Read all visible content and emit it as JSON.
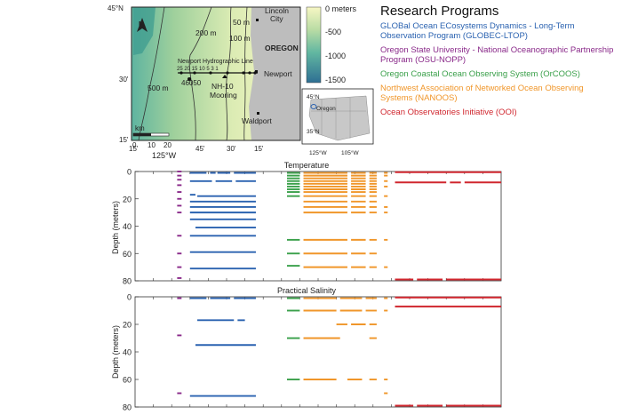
{
  "legend": {
    "title": "Research Programs",
    "programs": [
      {
        "name": "GLOBal Ocean ECosystems Dynamics - Long-Term Observation Program (GLOBEC-LTOP)",
        "color": "#2a62b0"
      },
      {
        "name": "Oregon State University - National Oceanographic Partnership Program (OSU-NOPP)",
        "color": "#8a2a8a"
      },
      {
        "name": "Oregon Coastal Ocean Observing System (OrCOOS)",
        "color": "#3aa04a"
      },
      {
        "name": "Northwest Association of Networked Ocean Observing Systems (NANOOS)",
        "color": "#f0962a"
      },
      {
        "name": "Ocean Observatories Initiative (OOI)",
        "color": "#d0262e"
      }
    ]
  },
  "map": {
    "lat_top": "45°N",
    "lat_mid": "30'",
    "lat_bottom": "15'",
    "lat_left_45": "45",
    "lon_main": "125°W",
    "lon_15a": "15'",
    "lon_45": "45'",
    "lon_30": "30'",
    "lon_15b": "15'",
    "north_label": "N",
    "scale_unit": "km",
    "scale_0": "0",
    "scale_10": "10",
    "scale_20": "20",
    "contour_50": "50 m",
    "contour_100": "100 m",
    "contour_200": "200 m",
    "contour_500": "500 m",
    "line_label": "Newport Hydrographic Line",
    "stations": "25   20   15   10   5  3 1",
    "buoy": "46050",
    "mooring1": "NH-10",
    "mooring2": "Mooring",
    "city1": "Lincoln",
    "city1b": "City",
    "city2": "Newport",
    "city3": "Waldport",
    "state": "OREGON",
    "inset_oregon": "Oregon",
    "inset_lat45": "45°N",
    "inset_lat35": "35°N",
    "inset_lon125": "125°W",
    "inset_lon105": "105°W"
  },
  "colorbar": {
    "labels": [
      "0 meters",
      "-500",
      "-1000",
      "-1500"
    ]
  },
  "chart_data": [
    {
      "type": "timeline",
      "title": "Temperature",
      "ylabel": "Depth (meters)",
      "ylim": [
        0,
        80
      ],
      "yticks": [
        0,
        20,
        40,
        60,
        80
      ],
      "x_range": [
        0,
        100
      ],
      "segments": [
        {
          "program": "OSU-NOPP",
          "depth": 0,
          "x0": 11.5,
          "x1": 12.7
        },
        {
          "program": "OSU-NOPP",
          "depth": 3,
          "x0": 11.5,
          "x1": 12.7
        },
        {
          "program": "OSU-NOPP",
          "depth": 6,
          "x0": 11.5,
          "x1": 12.7
        },
        {
          "program": "OSU-NOPP",
          "depth": 10,
          "x0": 11.5,
          "x1": 12.7
        },
        {
          "program": "OSU-NOPP",
          "depth": 15,
          "x0": 11.5,
          "x1": 12.7
        },
        {
          "program": "OSU-NOPP",
          "depth": 20,
          "x0": 11.5,
          "x1": 12.7
        },
        {
          "program": "OSU-NOPP",
          "depth": 25,
          "x0": 11.5,
          "x1": 12.7
        },
        {
          "program": "OSU-NOPP",
          "depth": 30,
          "x0": 11.5,
          "x1": 12.7
        },
        {
          "program": "OSU-NOPP",
          "depth": 47,
          "x0": 11.5,
          "x1": 12.7
        },
        {
          "program": "OSU-NOPP",
          "depth": 60,
          "x0": 11.5,
          "x1": 12.7
        },
        {
          "program": "OSU-NOPP",
          "depth": 70,
          "x0": 11.5,
          "x1": 12.7
        },
        {
          "program": "OSU-NOPP",
          "depth": 78,
          "x0": 11.5,
          "x1": 12.7
        },
        {
          "program": "GLOBEC-LTOP",
          "depth": 1,
          "x0": 15,
          "x1": 19.5
        },
        {
          "program": "GLOBEC-LTOP",
          "depth": 1,
          "x0": 20.5,
          "x1": 22
        },
        {
          "program": "GLOBEC-LTOP",
          "depth": 1,
          "x0": 22.5,
          "x1": 26
        },
        {
          "program": "GLOBEC-LTOP",
          "depth": 1,
          "x0": 27,
          "x1": 33
        },
        {
          "program": "GLOBEC-LTOP",
          "depth": 7,
          "x0": 15,
          "x1": 21
        },
        {
          "program": "GLOBEC-LTOP",
          "depth": 7,
          "x0": 22,
          "x1": 26.5
        },
        {
          "program": "GLOBEC-LTOP",
          "depth": 7,
          "x0": 27.5,
          "x1": 33
        },
        {
          "program": "GLOBEC-LTOP",
          "depth": 17,
          "x0": 15,
          "x1": 16.5
        },
        {
          "program": "GLOBEC-LTOP",
          "depth": 18,
          "x0": 17,
          "x1": 33
        },
        {
          "program": "GLOBEC-LTOP",
          "depth": 22,
          "x0": 15,
          "x1": 33
        },
        {
          "program": "GLOBEC-LTOP",
          "depth": 26,
          "x0": 15,
          "x1": 33
        },
        {
          "program": "GLOBEC-LTOP",
          "depth": 30,
          "x0": 15,
          "x1": 33
        },
        {
          "program": "GLOBEC-LTOP",
          "depth": 35,
          "x0": 15,
          "x1": 33
        },
        {
          "program": "GLOBEC-LTOP",
          "depth": 41,
          "x0": 16.5,
          "x1": 33
        },
        {
          "program": "GLOBEC-LTOP",
          "depth": 47,
          "x0": 15,
          "x1": 33
        },
        {
          "program": "GLOBEC-LTOP",
          "depth": 59,
          "x0": 15,
          "x1": 33
        },
        {
          "program": "GLOBEC-LTOP",
          "depth": 71,
          "x0": 15,
          "x1": 33
        },
        {
          "program": "OrCOOS",
          "depth": 1,
          "x0": 41.5,
          "x1": 45
        },
        {
          "program": "OrCOOS",
          "depth": 3,
          "x0": 41.5,
          "x1": 45
        },
        {
          "program": "OrCOOS",
          "depth": 5,
          "x0": 41.5,
          "x1": 45
        },
        {
          "program": "OrCOOS",
          "depth": 7,
          "x0": 41.5,
          "x1": 45
        },
        {
          "program": "OrCOOS",
          "depth": 9,
          "x0": 41.5,
          "x1": 45
        },
        {
          "program": "OrCOOS",
          "depth": 11,
          "x0": 41.5,
          "x1": 45
        },
        {
          "program": "OrCOOS",
          "depth": 13,
          "x0": 41.5,
          "x1": 45
        },
        {
          "program": "OrCOOS",
          "depth": 15,
          "x0": 41.5,
          "x1": 45
        },
        {
          "program": "OrCOOS",
          "depth": 18,
          "x0": 41.5,
          "x1": 45
        },
        {
          "program": "OrCOOS",
          "depth": 50,
          "x0": 41.5,
          "x1": 45
        },
        {
          "program": "OrCOOS",
          "depth": 60,
          "x0": 41.5,
          "x1": 45
        },
        {
          "program": "OrCOOS",
          "depth": 69,
          "x0": 41.5,
          "x1": 45
        },
        {
          "program": "NANOOS",
          "depth": 1,
          "x0": 46,
          "x1": 58
        },
        {
          "program": "NANOOS",
          "depth": 1,
          "x0": 59,
          "x1": 63
        },
        {
          "program": "NANOOS",
          "depth": 1,
          "x0": 64,
          "x1": 66
        },
        {
          "program": "NANOOS",
          "depth": 1,
          "x0": 68,
          "x1": 69
        },
        {
          "program": "NANOOS",
          "depth": 3,
          "x0": 46,
          "x1": 58
        },
        {
          "program": "NANOOS",
          "depth": 3,
          "x0": 59,
          "x1": 63
        },
        {
          "program": "NANOOS",
          "depth": 3,
          "x0": 64,
          "x1": 66
        },
        {
          "program": "NANOOS",
          "depth": 3,
          "x0": 68,
          "x1": 69
        },
        {
          "program": "NANOOS",
          "depth": 5,
          "x0": 46,
          "x1": 58
        },
        {
          "program": "NANOOS",
          "depth": 5,
          "x0": 59,
          "x1": 63
        },
        {
          "program": "NANOOS",
          "depth": 5,
          "x0": 64,
          "x1": 66
        },
        {
          "program": "NANOOS",
          "depth": 7,
          "x0": 46,
          "x1": 58
        },
        {
          "program": "NANOOS",
          "depth": 7,
          "x0": 59,
          "x1": 63
        },
        {
          "program": "NANOOS",
          "depth": 7,
          "x0": 64,
          "x1": 66
        },
        {
          "program": "NANOOS",
          "depth": 7,
          "x0": 68,
          "x1": 69
        },
        {
          "program": "NANOOS",
          "depth": 9,
          "x0": 46,
          "x1": 58
        },
        {
          "program": "NANOOS",
          "depth": 9,
          "x0": 59,
          "x1": 63
        },
        {
          "program": "NANOOS",
          "depth": 9,
          "x0": 64,
          "x1": 66
        },
        {
          "program": "NANOOS",
          "depth": 11,
          "x0": 46,
          "x1": 58
        },
        {
          "program": "NANOOS",
          "depth": 11,
          "x0": 59,
          "x1": 63
        },
        {
          "program": "NANOOS",
          "depth": 11,
          "x0": 64,
          "x1": 66
        },
        {
          "program": "NANOOS",
          "depth": 11,
          "x0": 68,
          "x1": 69
        },
        {
          "program": "NANOOS",
          "depth": 13,
          "x0": 46,
          "x1": 58
        },
        {
          "program": "NANOOS",
          "depth": 13,
          "x0": 59,
          "x1": 63
        },
        {
          "program": "NANOOS",
          "depth": 13,
          "x0": 64,
          "x1": 66
        },
        {
          "program": "NANOOS",
          "depth": 15,
          "x0": 46,
          "x1": 58
        },
        {
          "program": "NANOOS",
          "depth": 15,
          "x0": 59,
          "x1": 63
        },
        {
          "program": "NANOOS",
          "depth": 15,
          "x0": 64,
          "x1": 66
        },
        {
          "program": "NANOOS",
          "depth": 18,
          "x0": 46,
          "x1": 58
        },
        {
          "program": "NANOOS",
          "depth": 18,
          "x0": 59,
          "x1": 63
        },
        {
          "program": "NANOOS",
          "depth": 18,
          "x0": 64,
          "x1": 66
        },
        {
          "program": "NANOOS",
          "depth": 18,
          "x0": 68,
          "x1": 69
        },
        {
          "program": "NANOOS",
          "depth": 22,
          "x0": 46,
          "x1": 58
        },
        {
          "program": "NANOOS",
          "depth": 22,
          "x0": 59,
          "x1": 63
        },
        {
          "program": "NANOOS",
          "depth": 22,
          "x0": 64,
          "x1": 66
        },
        {
          "program": "NANOOS",
          "depth": 26,
          "x0": 46,
          "x1": 58
        },
        {
          "program": "NANOOS",
          "depth": 26,
          "x0": 59,
          "x1": 63
        },
        {
          "program": "NANOOS",
          "depth": 26,
          "x0": 64,
          "x1": 66
        },
        {
          "program": "NANOOS",
          "depth": 26,
          "x0": 68,
          "x1": 69
        },
        {
          "program": "NANOOS",
          "depth": 30,
          "x0": 46,
          "x1": 58
        },
        {
          "program": "NANOOS",
          "depth": 30,
          "x0": 59,
          "x1": 63
        },
        {
          "program": "NANOOS",
          "depth": 30,
          "x0": 64,
          "x1": 66
        },
        {
          "program": "NANOOS",
          "depth": 30,
          "x0": 68,
          "x1": 69
        },
        {
          "program": "NANOOS",
          "depth": 50,
          "x0": 46,
          "x1": 58
        },
        {
          "program": "NANOOS",
          "depth": 50,
          "x0": 59,
          "x1": 63
        },
        {
          "program": "NANOOS",
          "depth": 50,
          "x0": 64,
          "x1": 66
        },
        {
          "program": "NANOOS",
          "depth": 50,
          "x0": 68,
          "x1": 69
        },
        {
          "program": "NANOOS",
          "depth": 60,
          "x0": 46,
          "x1": 58
        },
        {
          "program": "NANOOS",
          "depth": 60,
          "x0": 59,
          "x1": 63
        },
        {
          "program": "NANOOS",
          "depth": 60,
          "x0": 64,
          "x1": 66
        },
        {
          "program": "NANOOS",
          "depth": 70,
          "x0": 46,
          "x1": 58
        },
        {
          "program": "NANOOS",
          "depth": 70,
          "x0": 59,
          "x1": 63
        },
        {
          "program": "NANOOS",
          "depth": 70,
          "x0": 64,
          "x1": 66
        },
        {
          "program": "NANOOS",
          "depth": 70,
          "x0": 68,
          "x1": 69
        },
        {
          "program": "OOI",
          "depth": 0.5,
          "x0": 71,
          "x1": 100
        },
        {
          "program": "OOI",
          "depth": 8,
          "x0": 71,
          "x1": 85
        },
        {
          "program": "OOI",
          "depth": 8,
          "x0": 86,
          "x1": 89
        },
        {
          "program": "OOI",
          "depth": 8,
          "x0": 90,
          "x1": 100
        },
        {
          "program": "OOI",
          "depth": 79,
          "x0": 71,
          "x1": 76
        },
        {
          "program": "OOI",
          "depth": 79,
          "x0": 77,
          "x1": 84
        },
        {
          "program": "OOI",
          "depth": 79,
          "x0": 85,
          "x1": 100
        }
      ]
    },
    {
      "type": "timeline",
      "title": "Practical Salinity",
      "ylabel": "Depth (meters)",
      "ylim": [
        0,
        80
      ],
      "yticks": [
        0,
        20,
        40,
        60,
        80
      ],
      "x_range": [
        0,
        100
      ],
      "segments": [
        {
          "program": "OSU-NOPP",
          "depth": 1,
          "x0": 11.5,
          "x1": 12.7
        },
        {
          "program": "OSU-NOPP",
          "depth": 28,
          "x0": 11.5,
          "x1": 12.7
        },
        {
          "program": "OSU-NOPP",
          "depth": 70,
          "x0": 11.5,
          "x1": 12.7
        },
        {
          "program": "GLOBEC-LTOP",
          "depth": 1,
          "x0": 15,
          "x1": 19.5
        },
        {
          "program": "GLOBEC-LTOP",
          "depth": 1,
          "x0": 20.5,
          "x1": 26
        },
        {
          "program": "GLOBEC-LTOP",
          "depth": 1,
          "x0": 27,
          "x1": 33
        },
        {
          "program": "GLOBEC-LTOP",
          "depth": 17,
          "x0": 17,
          "x1": 27
        },
        {
          "program": "GLOBEC-LTOP",
          "depth": 17,
          "x0": 28,
          "x1": 30
        },
        {
          "program": "GLOBEC-LTOP",
          "depth": 35,
          "x0": 16.5,
          "x1": 33
        },
        {
          "program": "GLOBEC-LTOP",
          "depth": 72,
          "x0": 15,
          "x1": 33
        },
        {
          "program": "OrCOOS",
          "depth": 1,
          "x0": 41.5,
          "x1": 45
        },
        {
          "program": "OrCOOS",
          "depth": 10,
          "x0": 41.5,
          "x1": 45
        },
        {
          "program": "OrCOOS",
          "depth": 30,
          "x0": 41.5,
          "x1": 45
        },
        {
          "program": "OrCOOS",
          "depth": 60,
          "x0": 41.5,
          "x1": 45
        },
        {
          "program": "NANOOS",
          "depth": 1,
          "x0": 46,
          "x1": 55
        },
        {
          "program": "NANOOS",
          "depth": 1,
          "x0": 56,
          "x1": 62
        },
        {
          "program": "NANOOS",
          "depth": 1,
          "x0": 63,
          "x1": 66
        },
        {
          "program": "NANOOS",
          "depth": 1,
          "x0": 68,
          "x1": 69
        },
        {
          "program": "NANOOS",
          "depth": 10,
          "x0": 46,
          "x1": 55
        },
        {
          "program": "NANOOS",
          "depth": 10,
          "x0": 56,
          "x1": 62
        },
        {
          "program": "NANOOS",
          "depth": 10,
          "x0": 63,
          "x1": 66
        },
        {
          "program": "NANOOS",
          "depth": 10,
          "x0": 68,
          "x1": 69
        },
        {
          "program": "NANOOS",
          "depth": 20,
          "x0": 55,
          "x1": 58
        },
        {
          "program": "NANOOS",
          "depth": 20,
          "x0": 59,
          "x1": 63
        },
        {
          "program": "NANOOS",
          "depth": 20,
          "x0": 64,
          "x1": 66
        },
        {
          "program": "NANOOS",
          "depth": 30,
          "x0": 46,
          "x1": 56
        },
        {
          "program": "NANOOS",
          "depth": 30,
          "x0": 64,
          "x1": 66
        },
        {
          "program": "NANOOS",
          "depth": 60,
          "x0": 46,
          "x1": 55
        },
        {
          "program": "NANOOS",
          "depth": 60,
          "x0": 58,
          "x1": 62
        },
        {
          "program": "NANOOS",
          "depth": 60,
          "x0": 64,
          "x1": 66
        },
        {
          "program": "NANOOS",
          "depth": 60,
          "x0": 68,
          "x1": 69
        },
        {
          "program": "NANOOS",
          "depth": 70,
          "x0": 68,
          "x1": 69
        },
        {
          "program": "OOI",
          "depth": 0.5,
          "x0": 71,
          "x1": 100
        },
        {
          "program": "OOI",
          "depth": 7,
          "x0": 71,
          "x1": 100
        },
        {
          "program": "OOI",
          "depth": 79,
          "x0": 71,
          "x1": 76
        },
        {
          "program": "OOI",
          "depth": 79,
          "x0": 77,
          "x1": 84
        },
        {
          "program": "OOI",
          "depth": 79,
          "x0": 85,
          "x1": 100
        }
      ]
    }
  ]
}
